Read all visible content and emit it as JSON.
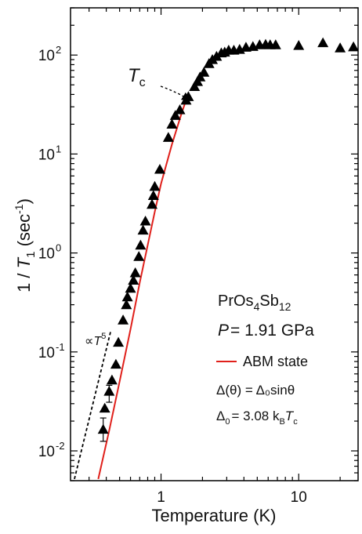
{
  "chart_data": {
    "type": "scatter",
    "title": "",
    "xlabel": "Temperature (K)",
    "ylabel": {
      "prefix": "1 / ",
      "var": "T",
      "sub": "1",
      "unit_open": " (sec",
      "unit_sup": "-1",
      "unit_close": ")"
    },
    "xscale": "log",
    "yscale": "log",
    "xlim": [
      0.22,
      27
    ],
    "ylim": [
      0.005,
      300
    ],
    "grid": false,
    "legend_placement": "lower-right",
    "x_ticks": [
      {
        "value": 1,
        "label": "1"
      },
      {
        "value": 10,
        "label": "10"
      }
    ],
    "y_ticks": [
      {
        "value": 0.01,
        "base": "10",
        "exp": "-2"
      },
      {
        "value": 0.1,
        "base": "10",
        "exp": "-1"
      },
      {
        "value": 1,
        "base": "10",
        "exp": "0"
      },
      {
        "value": 10,
        "base": "10",
        "exp": "1"
      },
      {
        "value": 100,
        "base": "10",
        "exp": "2"
      }
    ],
    "annotations": {
      "material": {
        "a": "PrOs",
        "b": "4",
        "c": "Sb",
        "d": "12"
      },
      "pressure": {
        "var": "P",
        "text": "= 1.91 GPa"
      },
      "gap_formula": "Δ(θ) = Δ₀sinθ",
      "gap_value": {
        "pre": "Δ",
        "sub1": "0",
        "mid": "= 3.08 k",
        "sub2": "B",
        "var": "T",
        "sub3": "c"
      },
      "tc_label": {
        "var": "T",
        "sub": "c"
      },
      "power_law": {
        "pre": "∝",
        "var": "T",
        "sup": "5"
      }
    },
    "series": [
      {
        "name": "",
        "marker": "triangle",
        "color": "#000000",
        "points": [
          [
            0.38,
            0.0165
          ],
          [
            0.39,
            0.027
          ],
          [
            0.42,
            0.04
          ],
          [
            0.44,
            0.052
          ],
          [
            0.47,
            0.075
          ],
          [
            0.49,
            0.125
          ],
          [
            0.53,
            0.21
          ],
          [
            0.56,
            0.3
          ],
          [
            0.57,
            0.36
          ],
          [
            0.6,
            0.44
          ],
          [
            0.63,
            0.53
          ],
          [
            0.65,
            0.63
          ],
          [
            0.69,
            0.92
          ],
          [
            0.71,
            1.2
          ],
          [
            0.74,
            1.7
          ],
          [
            0.77,
            2.1
          ],
          [
            0.86,
            3.1
          ],
          [
            0.88,
            3.8
          ],
          [
            0.9,
            4.7
          ],
          [
            0.98,
            7.0
          ],
          [
            1.13,
            14.7
          ],
          [
            1.2,
            20.0
          ],
          [
            1.27,
            24.5
          ],
          [
            1.37,
            28.0
          ],
          [
            1.52,
            35.0
          ],
          [
            1.58,
            38.0
          ],
          [
            1.75,
            48.0
          ],
          [
            1.84,
            54.0
          ],
          [
            1.92,
            60.0
          ],
          [
            2.05,
            67.0
          ],
          [
            2.23,
            82.0
          ],
          [
            2.36,
            90.0
          ],
          [
            2.53,
            97.0
          ],
          [
            2.74,
            105.0
          ],
          [
            2.9,
            107.0
          ],
          [
            3.1,
            112.0
          ],
          [
            3.38,
            112.0
          ],
          [
            3.72,
            114.0
          ],
          [
            4.14,
            120.0
          ],
          [
            4.65,
            122.0
          ],
          [
            5.2,
            127.0
          ],
          [
            5.75,
            128.0
          ],
          [
            6.2,
            127.0
          ],
          [
            6.8,
            127.0
          ],
          [
            10.0,
            125.0
          ],
          [
            15.0,
            133.0
          ],
          [
            20.0,
            118.0
          ],
          [
            25.0,
            121.0
          ]
        ],
        "error_bars": [
          {
            "x": 0.38,
            "low": 0.0125,
            "high": 0.0215
          },
          {
            "x": 0.42,
            "low": 0.031,
            "high": 0.046
          }
        ]
      },
      {
        "name": "ABM state",
        "type": "line",
        "color": "#e0201b",
        "x": [
          0.35,
          0.42,
          0.5,
          0.6,
          0.7,
          0.8,
          0.9,
          1.0,
          1.2,
          1.4,
          1.55
        ],
        "y": [
          0.0052,
          0.016,
          0.05,
          0.17,
          0.5,
          1.2,
          2.6,
          5.0,
          12.5,
          25.0,
          38.0
        ]
      },
      {
        "name": "",
        "type": "line",
        "style": "dashed",
        "color": "#000000",
        "x": [
          0.235,
          0.43
        ],
        "y": [
          0.0052,
          0.16
        ]
      }
    ]
  }
}
